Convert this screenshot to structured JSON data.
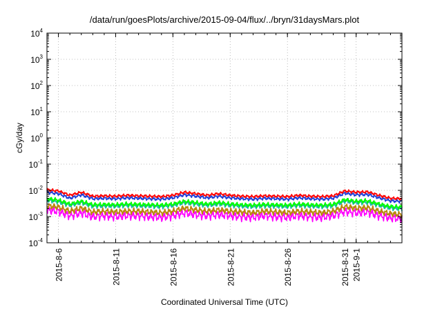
{
  "chart_data": {
    "type": "line",
    "title": "/data/run/goesPlots/archive/2015-09-04/flux/../bryn/31daysMars.plot",
    "xlabel": "Coordinated Universal Time (UTC)",
    "ylabel": "cGy/day",
    "yscale": "log",
    "ylim": [
      0.0001,
      10000
    ],
    "xlim": [
      "2015-08-05",
      "2015-09-05"
    ],
    "grid": true,
    "y_ticks": [
      {
        "base": "10",
        "exp": "-4"
      },
      {
        "base": "10",
        "exp": "-3"
      },
      {
        "base": "10",
        "exp": "-2"
      },
      {
        "base": "10",
        "exp": "-1"
      },
      {
        "base": "10",
        "exp": "0"
      },
      {
        "base": "10",
        "exp": "1"
      },
      {
        "base": "10",
        "exp": "2"
      },
      {
        "base": "10",
        "exp": "3"
      },
      {
        "base": "10",
        "exp": "4"
      }
    ],
    "x_ticks": [
      {
        "date": "2015-08-06",
        "label": "2015-8-6"
      },
      {
        "date": "2015-08-11",
        "label": "2015-8-11"
      },
      {
        "date": "2015-08-16",
        "label": "2015-8-16"
      },
      {
        "date": "2015-08-21",
        "label": "2015-8-21"
      },
      {
        "date": "2015-08-26",
        "label": "2015-8-26"
      },
      {
        "date": "2015-08-31",
        "label": "2015-8-31"
      },
      {
        "date": "2015-09-01",
        "label": "2015-9-1"
      }
    ],
    "x": [
      "2015-08-05",
      "2015-08-06",
      "2015-08-07",
      "2015-08-08",
      "2015-08-09",
      "2015-08-10",
      "2015-08-11",
      "2015-08-12",
      "2015-08-13",
      "2015-08-14",
      "2015-08-15",
      "2015-08-16",
      "2015-08-17",
      "2015-08-18",
      "2015-08-19",
      "2015-08-20",
      "2015-08-21",
      "2015-08-22",
      "2015-08-23",
      "2015-08-24",
      "2015-08-25",
      "2015-08-26",
      "2015-08-27",
      "2015-08-28",
      "2015-08-29",
      "2015-08-30",
      "2015-08-31",
      "2015-09-01",
      "2015-09-02",
      "2015-09-03",
      "2015-09-04",
      "2015-09-05"
    ],
    "series": [
      {
        "color": "#ff0000",
        "values": [
          0.0105,
          0.0095,
          0.0065,
          0.0085,
          0.006,
          0.0062,
          0.006,
          0.0065,
          0.0062,
          0.006,
          0.0058,
          0.0065,
          0.0085,
          0.0075,
          0.0065,
          0.0075,
          0.0065,
          0.006,
          0.0058,
          0.0062,
          0.006,
          0.0058,
          0.0065,
          0.006,
          0.0058,
          0.0062,
          0.0095,
          0.0085,
          0.0088,
          0.0065,
          0.005,
          0.0048
        ]
      },
      {
        "color": "#1f3fd8",
        "values": [
          0.0085,
          0.0075,
          0.005,
          0.0068,
          0.0048,
          0.005,
          0.0048,
          0.0052,
          0.005,
          0.0048,
          0.0046,
          0.0052,
          0.0068,
          0.006,
          0.0052,
          0.006,
          0.0052,
          0.0048,
          0.0046,
          0.005,
          0.0048,
          0.0046,
          0.0052,
          0.0048,
          0.0046,
          0.005,
          0.0078,
          0.0068,
          0.007,
          0.0052,
          0.004,
          0.0038
        ]
      },
      {
        "color": "#00ff00",
        "values": [
          0.0048,
          0.0042,
          0.003,
          0.0038,
          0.0028,
          0.0029,
          0.0028,
          0.003,
          0.0029,
          0.0028,
          0.0027,
          0.003,
          0.0038,
          0.0034,
          0.003,
          0.0034,
          0.003,
          0.0028,
          0.0027,
          0.0029,
          0.0028,
          0.0027,
          0.003,
          0.0028,
          0.0027,
          0.0029,
          0.0044,
          0.0038,
          0.004,
          0.003,
          0.0024,
          0.0023
        ]
      },
      {
        "color": "#20b2aa",
        "values": [
          0.0042,
          0.0037,
          0.0027,
          0.0034,
          0.0025,
          0.0026,
          0.0025,
          0.0027,
          0.0026,
          0.0025,
          0.0024,
          0.0027,
          0.0034,
          0.003,
          0.0027,
          0.003,
          0.0027,
          0.0025,
          0.0024,
          0.0026,
          0.0025,
          0.0024,
          0.0027,
          0.0025,
          0.0024,
          0.0026,
          0.0039,
          0.0034,
          0.0035,
          0.0027,
          0.0021,
          0.002
        ]
      },
      {
        "color": "#b8860b",
        "values": [
          0.0026,
          0.0023,
          0.0016,
          0.0021,
          0.0015,
          0.0016,
          0.0015,
          0.0016,
          0.0016,
          0.0015,
          0.0014,
          0.0016,
          0.0021,
          0.0018,
          0.0016,
          0.0018,
          0.0016,
          0.0015,
          0.0014,
          0.0016,
          0.0015,
          0.0014,
          0.0016,
          0.0015,
          0.0014,
          0.0016,
          0.0024,
          0.0021,
          0.0022,
          0.0016,
          0.0013,
          0.0012
        ]
      },
      {
        "color": "#ff00ff",
        "values": [
          0.0018,
          0.0016,
          0.0011,
          0.0014,
          0.001,
          0.0011,
          0.001,
          0.0011,
          0.0011,
          0.001,
          0.00095,
          0.0011,
          0.0014,
          0.0012,
          0.0011,
          0.0012,
          0.0011,
          0.001,
          0.00095,
          0.0011,
          0.001,
          0.00095,
          0.0011,
          0.001,
          0.00095,
          0.0011,
          0.0016,
          0.0014,
          0.0015,
          0.0011,
          0.0009,
          0.00085
        ]
      }
    ]
  }
}
